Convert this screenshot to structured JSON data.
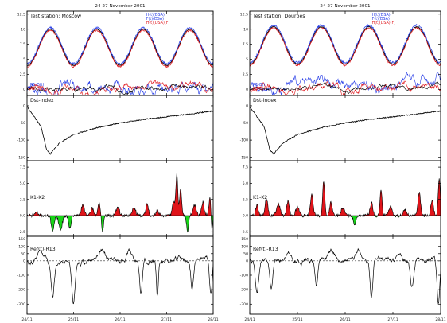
{
  "colors": {
    "red": "#e0141a",
    "blue": "#2238e6",
    "green": "#18d418",
    "black": "#000000",
    "orange": "#ff6b2a"
  },
  "chart_data": [
    {
      "id": "left",
      "type": "line",
      "title": "24-27 November 2001",
      "x": {
        "range": [
          0,
          4
        ],
        "tick_values": [
          0,
          1,
          2,
          3,
          4
        ],
        "tick_labels": [
          "24/11",
          "25/11",
          "26/11",
          "27/11",
          "28/11"
        ]
      },
      "panels": [
        {
          "kind": "hourly",
          "label": "Test station: Moscow",
          "legend": [
            {
              "text": "H(t)(DSA)",
              "color": "#2238e6"
            },
            {
              "text": "F(t)(DSA)",
              "color": "#2238e6"
            },
            {
              "text": "H(t)(DSA)(F)",
              "color": "#e0141a"
            }
          ],
          "lower_legend": [
            {
              "text": "R1-D(t)",
              "color": "#2238e6"
            },
            {
              "text": "R2-D(t)",
              "color": "#e0141a"
            }
          ],
          "ylim": [
            -1.0,
            13.0
          ],
          "tick_values": [
            0,
            2.5,
            5,
            7.5,
            10,
            12.5
          ],
          "tick_labels": [
            "0",
            "2.5",
            "5",
            "7.5",
            "10",
            "12.5"
          ],
          "diurnal": {
            "base": 4.0,
            "amplitude": 6.0,
            "peak_hour": 12
          },
          "deviations": {
            "baseline": 0.2
          }
        },
        {
          "kind": "dst",
          "label": "Dst-index",
          "ylim": [
            -160,
            30
          ],
          "tick_values": [
            0,
            -50,
            -100,
            -150
          ],
          "tick_labels": [
            "0",
            "-50",
            "-100",
            "-150"
          ],
          "profile": [
            [
              0.0,
              -2
            ],
            [
              0.08,
              -18
            ],
            [
              0.3,
              -60
            ],
            [
              0.42,
              -128
            ],
            [
              0.5,
              -140
            ],
            [
              0.7,
              -108
            ],
            [
              1.0,
              -84
            ],
            [
              1.5,
              -64
            ],
            [
              2.0,
              -50
            ],
            [
              2.5,
              -40
            ],
            [
              3.0,
              -32
            ],
            [
              3.5,
              -24
            ],
            [
              4.0,
              -15
            ]
          ]
        },
        {
          "kind": "area",
          "label": "K1-K2",
          "ylim": [
            -3.2,
            8.5
          ],
          "tick_values": [
            7.5,
            5,
            2.5,
            0,
            -2.5
          ],
          "tick_labels": [
            "7.5",
            "5.0",
            "2.5",
            "0.0",
            "-2.5"
          ],
          "area": {
            "peaks": [
              [
                0.2,
                0.5,
                0.05
              ],
              [
                0.55,
                -2.6,
                0.04
              ],
              [
                0.72,
                -2.2,
                0.05
              ],
              [
                0.92,
                -1.8,
                0.04
              ],
              [
                1.2,
                1.6,
                0.05
              ],
              [
                1.4,
                1.2,
                0.04
              ],
              [
                1.55,
                2.0,
                0.04
              ],
              [
                1.62,
                -2.8,
                0.03
              ],
              [
                1.95,
                1.3,
                0.05
              ],
              [
                2.3,
                1.2,
                0.05
              ],
              [
                2.58,
                1.8,
                0.04
              ],
              [
                2.8,
                0.8,
                0.05
              ],
              [
                3.15,
                2.2,
                0.04
              ],
              [
                3.22,
                6.4,
                0.03
              ],
              [
                3.3,
                4.2,
                0.03
              ],
              [
                3.45,
                -2.4,
                0.03
              ],
              [
                3.6,
                1.6,
                0.05
              ],
              [
                3.78,
                2.0,
                0.04
              ],
              [
                3.93,
                2.8,
                0.03
              ],
              [
                3.97,
                -2.6,
                0.02
              ]
            ]
          }
        },
        {
          "kind": "ref",
          "label": "Ref(t)-R13",
          "ylim": [
            -370,
            170
          ],
          "tick_values": [
            150,
            100,
            50,
            0,
            -100,
            -200,
            -300
          ],
          "tick_labels": [
            "150",
            "100",
            "50",
            "0",
            "-100",
            "-200",
            "-300"
          ],
          "ref": {
            "baseline": 5,
            "dips": [
              [
                0.55,
                -240,
                0.05
              ],
              [
                1.0,
                -280,
                0.05
              ],
              [
                2.45,
                -220,
                0.04
              ],
              [
                2.8,
                -260,
                0.03
              ],
              [
                3.55,
                -200,
                0.04
              ],
              [
                3.95,
                -250,
                0.04
              ]
            ],
            "bumps": [
              [
                0.3,
                70,
                0.08
              ],
              [
                1.6,
                90,
                0.1
              ],
              [
                2.2,
                60,
                0.08
              ]
            ]
          }
        }
      ]
    },
    {
      "id": "right",
      "type": "line",
      "title": "24-27 November 2001",
      "x": {
        "range": [
          0,
          4
        ],
        "tick_values": [
          0,
          1,
          2,
          3,
          4
        ],
        "tick_labels": [
          "24/11",
          "25/11",
          "26/11",
          "27/11",
          "28/11"
        ]
      },
      "panels": [
        {
          "kind": "hourly",
          "label": "Test station: Dourbes",
          "legend": [
            {
              "text": "H(t)(DSA)",
              "color": "#2238e6"
            },
            {
              "text": "F(t)(DSA)",
              "color": "#2238e6"
            },
            {
              "text": "H(t)(DSA)(F)",
              "color": "#e0141a"
            }
          ],
          "lower_legend": [
            {
              "text": "R1-D(t)",
              "color": "#2238e6"
            },
            {
              "text": "R2-D(t)",
              "color": "#e0141a"
            }
          ],
          "ylim": [
            -1.0,
            13.0
          ],
          "tick_values": [
            0,
            2.5,
            5,
            7.5,
            10,
            12.5
          ],
          "tick_labels": [
            "0",
            "2.5",
            "5",
            "7.5",
            "10",
            "12.5"
          ],
          "diurnal": {
            "base": 4.2,
            "amplitude": 6.2,
            "peak_hour": 12
          },
          "deviations": {
            "baseline": 0.3
          }
        },
        {
          "kind": "dst",
          "label": "Dst-index",
          "ylim": [
            -160,
            30
          ],
          "tick_values": [
            0,
            -50,
            -100,
            -150
          ],
          "tick_labels": [
            "0",
            "-50",
            "-100",
            "-150"
          ],
          "profile": [
            [
              0.0,
              -2
            ],
            [
              0.08,
              -18
            ],
            [
              0.3,
              -60
            ],
            [
              0.42,
              -128
            ],
            [
              0.5,
              -140
            ],
            [
              0.7,
              -108
            ],
            [
              1.0,
              -84
            ],
            [
              1.5,
              -64
            ],
            [
              2.0,
              -50
            ],
            [
              2.5,
              -40
            ],
            [
              3.0,
              -32
            ],
            [
              3.5,
              -24
            ],
            [
              4.0,
              -15
            ]
          ]
        },
        {
          "kind": "area",
          "label": "K1-K2",
          "ylim": [
            -3.2,
            8.5
          ],
          "tick_values": [
            7.5,
            5,
            2.5,
            0,
            -2.5
          ],
          "tick_labels": [
            "7.5",
            "5.0",
            "2.5",
            "0.0",
            "-2.5"
          ],
          "area": {
            "peaks": [
              [
                0.15,
                1.6,
                0.04
              ],
              [
                0.35,
                2.6,
                0.04
              ],
              [
                0.6,
                1.8,
                0.05
              ],
              [
                0.8,
                2.2,
                0.04
              ],
              [
                1.0,
                1.4,
                0.05
              ],
              [
                1.3,
                3.2,
                0.04
              ],
              [
                1.55,
                5.4,
                0.03
              ],
              [
                1.7,
                2.0,
                0.04
              ],
              [
                1.95,
                1.2,
                0.05
              ],
              [
                2.2,
                -1.4,
                0.04
              ],
              [
                2.55,
                2.0,
                0.04
              ],
              [
                2.75,
                4.2,
                0.03
              ],
              [
                2.95,
                1.4,
                0.05
              ],
              [
                3.25,
                0.9,
                0.05
              ],
              [
                3.55,
                3.6,
                0.04
              ],
              [
                3.82,
                2.4,
                0.04
              ],
              [
                3.97,
                6.0,
                0.03
              ]
            ]
          }
        },
        {
          "kind": "ref",
          "label": "Ref(t)-R13",
          "ylim": [
            -370,
            170
          ],
          "tick_values": [
            150,
            100,
            50,
            0,
            -100,
            -200,
            -300
          ],
          "tick_labels": [
            "150",
            "100",
            "50",
            "0",
            "-100",
            "-200",
            "-300"
          ],
          "ref": {
            "baseline": 10,
            "dips": [
              [
                0.15,
                -220,
                0.05
              ],
              [
                0.45,
                -180,
                0.04
              ],
              [
                1.4,
                -160,
                0.04
              ],
              [
                2.55,
                -260,
                0.04
              ],
              [
                3.4,
                -190,
                0.05
              ],
              [
                3.95,
                -320,
                0.04
              ]
            ],
            "bumps": [
              [
                0.8,
                40,
                0.08
              ],
              [
                1.7,
                80,
                0.1
              ],
              [
                2.3,
                60,
                0.1
              ]
            ]
          }
        }
      ]
    }
  ]
}
